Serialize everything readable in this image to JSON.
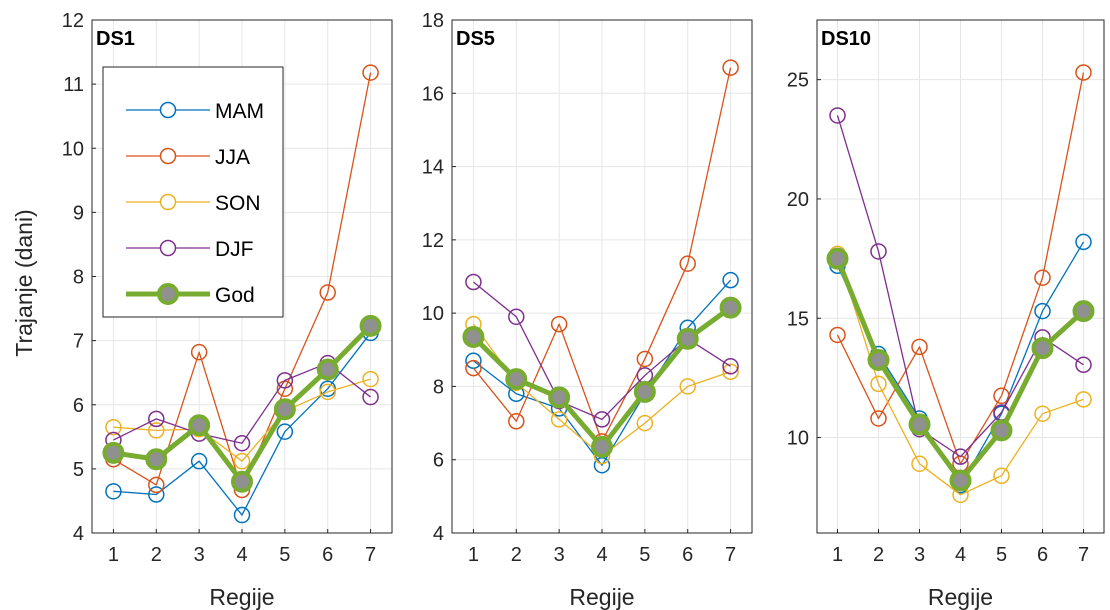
{
  "figure": {
    "ylabel": "Trajanje (dani)",
    "legend_position": "inside top-left of first panel"
  },
  "chart_data": [
    {
      "type": "line",
      "title": "DS1",
      "xlabel": "Regije",
      "ylabel": "Trajanje (dani)",
      "x": [
        1,
        2,
        3,
        4,
        5,
        6,
        7
      ],
      "xlim": [
        0.5,
        7.5
      ],
      "ylim": [
        4,
        12
      ],
      "yticks": [
        4,
        5,
        6,
        7,
        8,
        9,
        10,
        11,
        12
      ],
      "grid": true,
      "series": [
        {
          "name": "MAM",
          "color": "#0072BD",
          "values": [
            4.65,
            4.6,
            5.12,
            4.28,
            5.58,
            6.25,
            7.12
          ]
        },
        {
          "name": "JJA",
          "color": "#D95319",
          "values": [
            5.15,
            4.75,
            6.82,
            4.67,
            6.25,
            7.75,
            11.18
          ]
        },
        {
          "name": "SON",
          "color": "#EDB120",
          "values": [
            5.65,
            5.6,
            5.62,
            5.12,
            5.9,
            6.2,
            6.4
          ]
        },
        {
          "name": "DJF",
          "color": "#7E2F8E",
          "values": [
            5.45,
            5.78,
            5.55,
            5.4,
            6.38,
            6.65,
            6.12
          ]
        },
        {
          "name": "God",
          "color": "#77AC30",
          "values": [
            5.25,
            5.15,
            5.68,
            4.8,
            5.93,
            6.55,
            7.23
          ]
        }
      ]
    },
    {
      "type": "line",
      "title": "DS5",
      "xlabel": "Regije",
      "x": [
        1,
        2,
        3,
        4,
        5,
        6,
        7
      ],
      "xlim": [
        0.5,
        7.5
      ],
      "ylim": [
        4,
        18
      ],
      "yticks": [
        4,
        6,
        8,
        10,
        12,
        14,
        16,
        18
      ],
      "grid": true,
      "series": [
        {
          "name": "MAM",
          "color": "#0072BD",
          "values": [
            8.7,
            7.8,
            7.4,
            5.85,
            7.8,
            9.6,
            10.9
          ]
        },
        {
          "name": "JJA",
          "color": "#D95319",
          "values": [
            8.5,
            7.05,
            9.7,
            6.5,
            8.75,
            11.35,
            16.7
          ]
        },
        {
          "name": "SON",
          "color": "#EDB120",
          "values": [
            9.7,
            8.1,
            7.1,
            6.1,
            7.0,
            8.0,
            8.4
          ]
        },
        {
          "name": "DJF",
          "color": "#7E2F8E",
          "values": [
            10.85,
            9.9,
            7.6,
            7.1,
            8.3,
            9.3,
            8.55
          ]
        },
        {
          "name": "God",
          "color": "#77AC30",
          "values": [
            9.35,
            8.2,
            7.7,
            6.35,
            7.85,
            9.3,
            10.15
          ]
        }
      ]
    },
    {
      "type": "line",
      "title": "DS10",
      "xlabel": "Regije",
      "x": [
        1,
        2,
        3,
        4,
        5,
        6,
        7
      ],
      "xlim": [
        0.5,
        7.5
      ],
      "ylim": [
        6.0,
        27.5
      ],
      "yticks": [
        10,
        15,
        20,
        25
      ],
      "grid": true,
      "series": [
        {
          "name": "MAM",
          "color": "#0072BD",
          "values": [
            17.2,
            13.5,
            10.8,
            8.0,
            11.0,
            15.3,
            18.2
          ]
        },
        {
          "name": "JJA",
          "color": "#D95319",
          "values": [
            14.3,
            10.8,
            13.8,
            8.9,
            11.75,
            16.7,
            25.3
          ]
        },
        {
          "name": "SON",
          "color": "#EDB120",
          "values": [
            17.7,
            12.25,
            8.9,
            7.6,
            8.4,
            11.0,
            11.6
          ]
        },
        {
          "name": "DJF",
          "color": "#7E2F8E",
          "values": [
            23.5,
            17.8,
            10.35,
            9.2,
            11.05,
            14.2,
            13.05
          ]
        },
        {
          "name": "God",
          "color": "#77AC30",
          "values": [
            17.5,
            13.25,
            10.55,
            8.2,
            10.3,
            13.75,
            15.3
          ]
        }
      ]
    }
  ]
}
